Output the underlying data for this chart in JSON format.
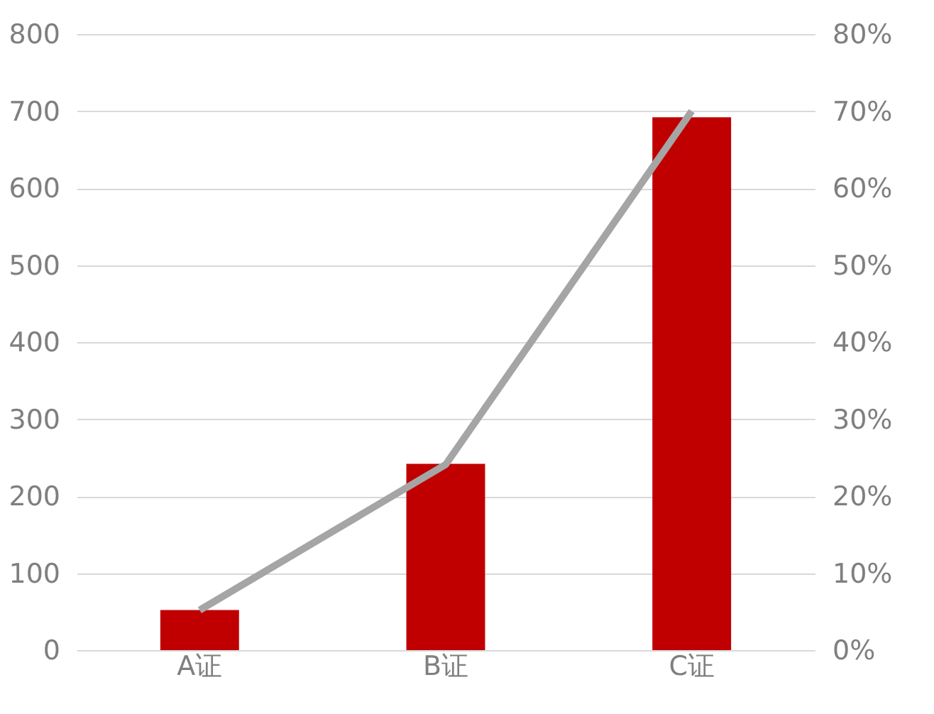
{
  "chart_data": {
    "type": "bar",
    "categories": [
      "A证",
      "B证",
      "C证"
    ],
    "series": [
      {
        "color": "#c00000",
        "values": [
          52,
          242,
          692
        ]
      },
      {
        "type": "line",
        "axis": "y2",
        "color": "#a5a5a5",
        "values": [
          5.2,
          24.1,
          70
        ]
      }
    ],
    "ylim": [
      0,
      800
    ],
    "yticks": [
      0,
      100,
      200,
      300,
      400,
      500,
      600,
      700,
      800
    ],
    "y2lim": [
      0,
      80
    ],
    "y2ticks": [
      {
        "value": 0,
        "label": "0%"
      },
      {
        "value": 10,
        "label": "10%"
      },
      {
        "value": 20,
        "label": "20%"
      },
      {
        "value": 30,
        "label": "30%"
      },
      {
        "value": 40,
        "label": "40%"
      },
      {
        "value": 50,
        "label": "50%"
      },
      {
        "value": 60,
        "label": "60%"
      },
      {
        "value": 70,
        "label": "70%"
      },
      {
        "value": 80,
        "label": "80%"
      }
    ],
    "grid": "y",
    "marker": "none",
    "line_style": "solid"
  }
}
